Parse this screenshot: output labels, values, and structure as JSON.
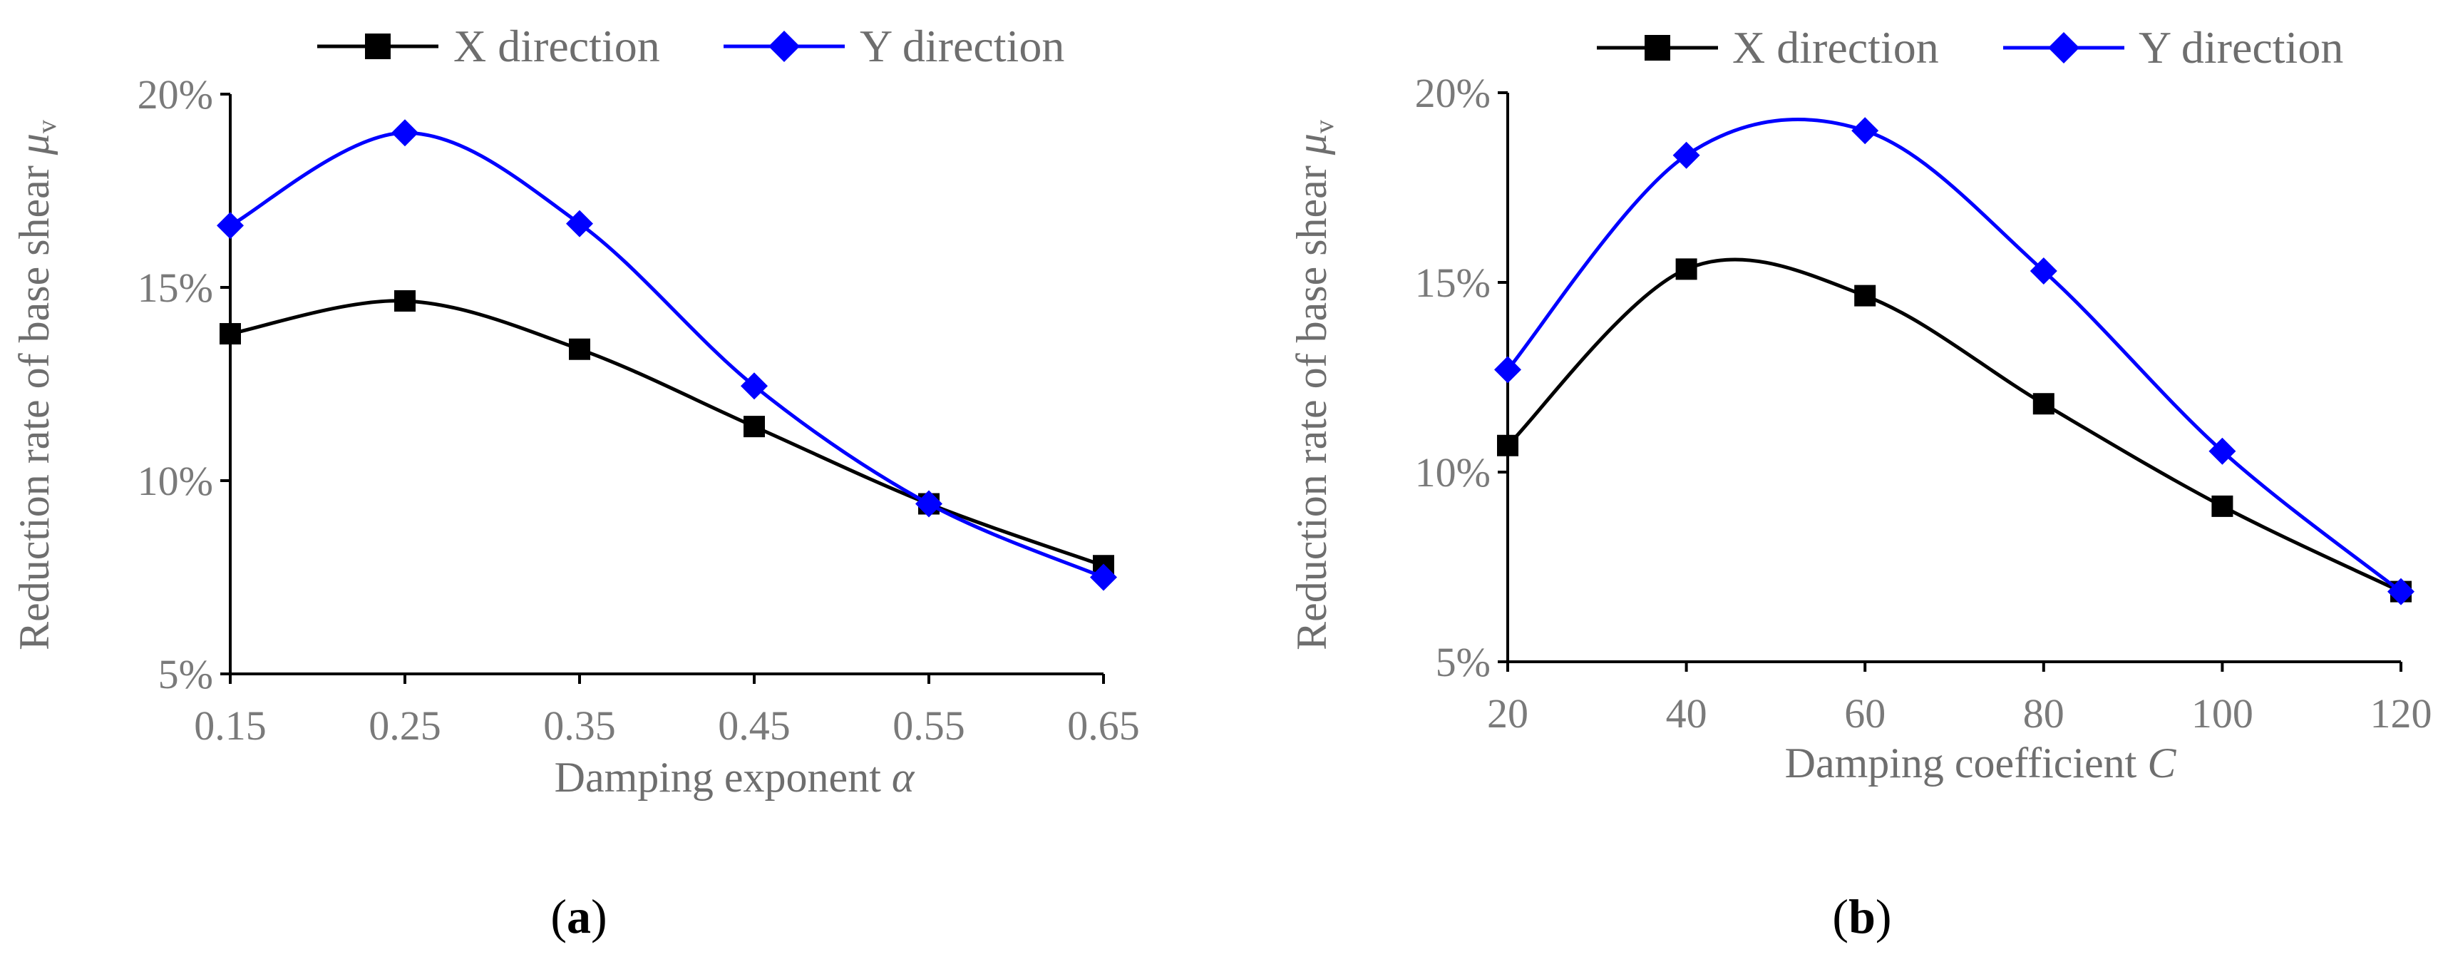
{
  "colors": {
    "x_series": "#000000",
    "y_series": "#0000ff",
    "axis": "#000000",
    "text": "#6e6e6e"
  },
  "chart_data": [
    {
      "type": "line",
      "panel_label": "a",
      "title": "",
      "xlabel": "Damping exponent",
      "xlabel_symbol": "α",
      "ylabel": "Reduction rate of base shear",
      "ylabel_symbol": "μ",
      "ylabel_subscript": "v",
      "x": [
        0.15,
        0.25,
        0.35,
        0.45,
        0.55,
        0.65
      ],
      "x_tick_labels": [
        "0.15",
        "0.25",
        "0.35",
        "0.45",
        "0.55",
        "0.65"
      ],
      "xlim": [
        0.15,
        0.65
      ],
      "ylim": [
        5,
        20
      ],
      "y_ticks": [
        5,
        10,
        15,
        20
      ],
      "y_tick_labels": [
        "5%",
        "10%",
        "15%",
        "20%"
      ],
      "legend": "top",
      "grid": false,
      "series": [
        {
          "name": "X direction",
          "marker": "square",
          "color": "#000000",
          "values": [
            13.8,
            14.65,
            13.4,
            11.4,
            9.4,
            7.8
          ]
        },
        {
          "name": "Y direction",
          "marker": "diamond",
          "color": "#0000ff",
          "values": [
            16.6,
            19.0,
            16.65,
            12.45,
            9.4,
            7.5
          ]
        }
      ]
    },
    {
      "type": "line",
      "panel_label": "b",
      "title": "",
      "xlabel": "Damping coefficient",
      "xlabel_symbol": "C",
      "ylabel": "Reduction rate of base shear",
      "ylabel_symbol": "μ",
      "ylabel_subscript": "v",
      "x": [
        20,
        40,
        60,
        80,
        100,
        120
      ],
      "x_tick_labels": [
        "20",
        "40",
        "60",
        "80",
        "100",
        "120"
      ],
      "xlim": [
        20,
        120
      ],
      "ylim": [
        5,
        20
      ],
      "y_ticks": [
        5,
        10,
        15,
        20
      ],
      "y_tick_labels": [
        "5%",
        "10%",
        "15%",
        "20%"
      ],
      "legend": "top",
      "grid": false,
      "series": [
        {
          "name": "X direction",
          "marker": "square",
          "color": "#000000",
          "values": [
            10.7,
            15.35,
            14.65,
            11.8,
            9.1,
            6.85
          ]
        },
        {
          "name": "Y direction",
          "marker": "diamond",
          "color": "#0000ff",
          "values": [
            12.7,
            18.35,
            19.0,
            15.3,
            10.55,
            6.85
          ]
        }
      ]
    }
  ]
}
